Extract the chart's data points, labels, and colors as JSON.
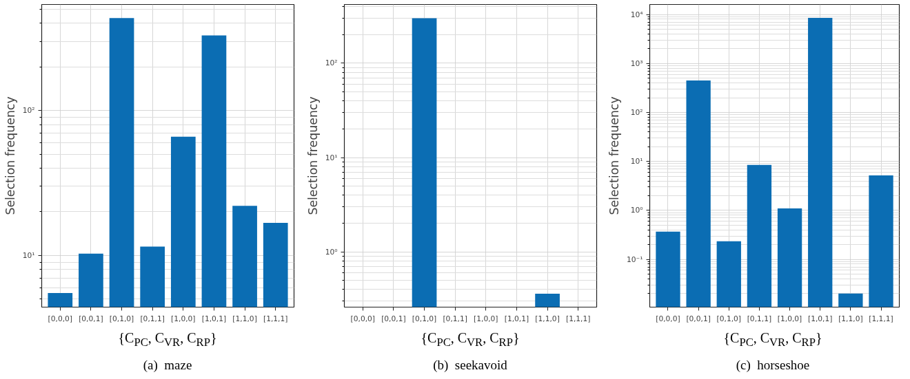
{
  "chart_data": [
    {
      "type": "bar",
      "title": "(a)  maze",
      "xlabel": "{C$_{PC}$, C$_{VR}$, C$_{RP}$}",
      "ylabel": "Selection frequency",
      "categories": [
        "[0,0,0]",
        "[0,0,1]",
        "[0,1,0]",
        "[0,1,1]",
        "[1,0,0]",
        "[1,0,1]",
        "[1,1,0]",
        "[1,1,1]"
      ],
      "values": [
        5.5,
        10.3,
        435,
        11.5,
        66,
        330,
        22,
        16.8
      ],
      "color": "#0b6db3",
      "log": "y",
      "ylim": [
        4.4,
        540
      ],
      "yticks": [
        {
          "value": 10,
          "label": "10¹"
        },
        {
          "value": 100,
          "label": "10²"
        }
      ],
      "grid": true
    },
    {
      "type": "bar",
      "title": "(b)  seekavoid",
      "xlabel": "{C$_{PC}$, C$_{VR}$, C$_{RP}$}",
      "ylabel": "Selection frequency",
      "categories": [
        "[0,0,0]",
        "[0,0,1]",
        "[0,1,0]",
        "[0,1,1]",
        "[1,0,0]",
        "[1,0,1]",
        "[1,1,0]",
        "[1,1,1]"
      ],
      "values": [
        null,
        null,
        300,
        null,
        null,
        null,
        0.36,
        null
      ],
      "color": "#0b6db3",
      "log": "y",
      "ylim": [
        0.26,
        420
      ],
      "yticks": [
        {
          "value": 1,
          "label": "10⁰"
        },
        {
          "value": 10,
          "label": "10¹"
        },
        {
          "value": 100,
          "label": "10²"
        }
      ],
      "grid": true
    },
    {
      "type": "bar",
      "title": "(c)  horseshoe",
      "xlabel": "{C$_{PC}$, C$_{VR}$, C$_{RP}$}",
      "ylabel": "Selection frequency",
      "categories": [
        "[0,0,0]",
        "[0,0,1]",
        "[0,1,0]",
        "[0,1,1]",
        "[1,0,0]",
        "[1,0,1]",
        "[1,1,0]",
        "[1,1,1]"
      ],
      "values": [
        0.37,
        450,
        0.235,
        8.5,
        1.1,
        8500,
        0.02,
        5.2
      ],
      "color": "#0b6db3",
      "log": "y",
      "ylim": [
        0.0106,
        16000
      ],
      "yticks": [
        {
          "value": 0.1,
          "label": "10⁻¹"
        },
        {
          "value": 1,
          "label": "10⁰"
        },
        {
          "value": 10,
          "label": "10¹"
        },
        {
          "value": 100,
          "label": "10²"
        },
        {
          "value": 1000,
          "label": "10³"
        },
        {
          "value": 10000,
          "label": "10⁴"
        }
      ],
      "grid": true
    }
  ]
}
